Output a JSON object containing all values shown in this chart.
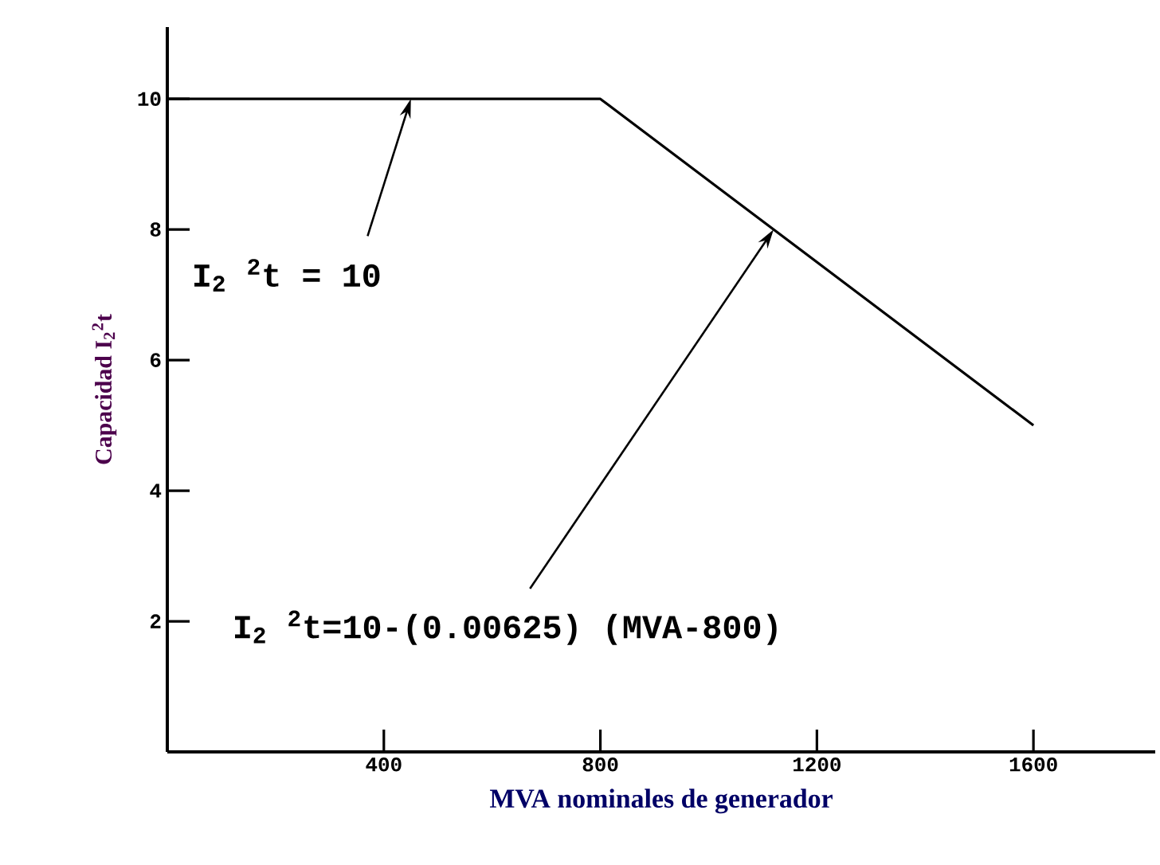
{
  "chart_data": {
    "type": "line",
    "xlabel": "MVA nominales de generador",
    "ylabel": "Capacidad I$_{2}$$^{2}$t",
    "x": [
      0,
      800,
      1600
    ],
    "series": [
      {
        "color": "#000000",
        "values": [
          10,
          10,
          5
        ]
      }
    ],
    "xlim": [
      0,
      1825
    ],
    "ylim": [
      0,
      11.1
    ],
    "xticks": [
      400,
      800,
      1200,
      1600
    ],
    "yticks": [
      2,
      4,
      6,
      8,
      10
    ],
    "grid": false,
    "marker": "none",
    "line_style": "solid",
    "annotations": [
      {
        "text": "I$_{2}$ $^{2}$t = 10",
        "x": 450,
        "y": 10
      },
      {
        "text": "I$_{2}$ $^{2}$t=10-(0.00625) (MVA-800)",
        "x": 1120,
        "y": 8.0
      }
    ]
  }
}
